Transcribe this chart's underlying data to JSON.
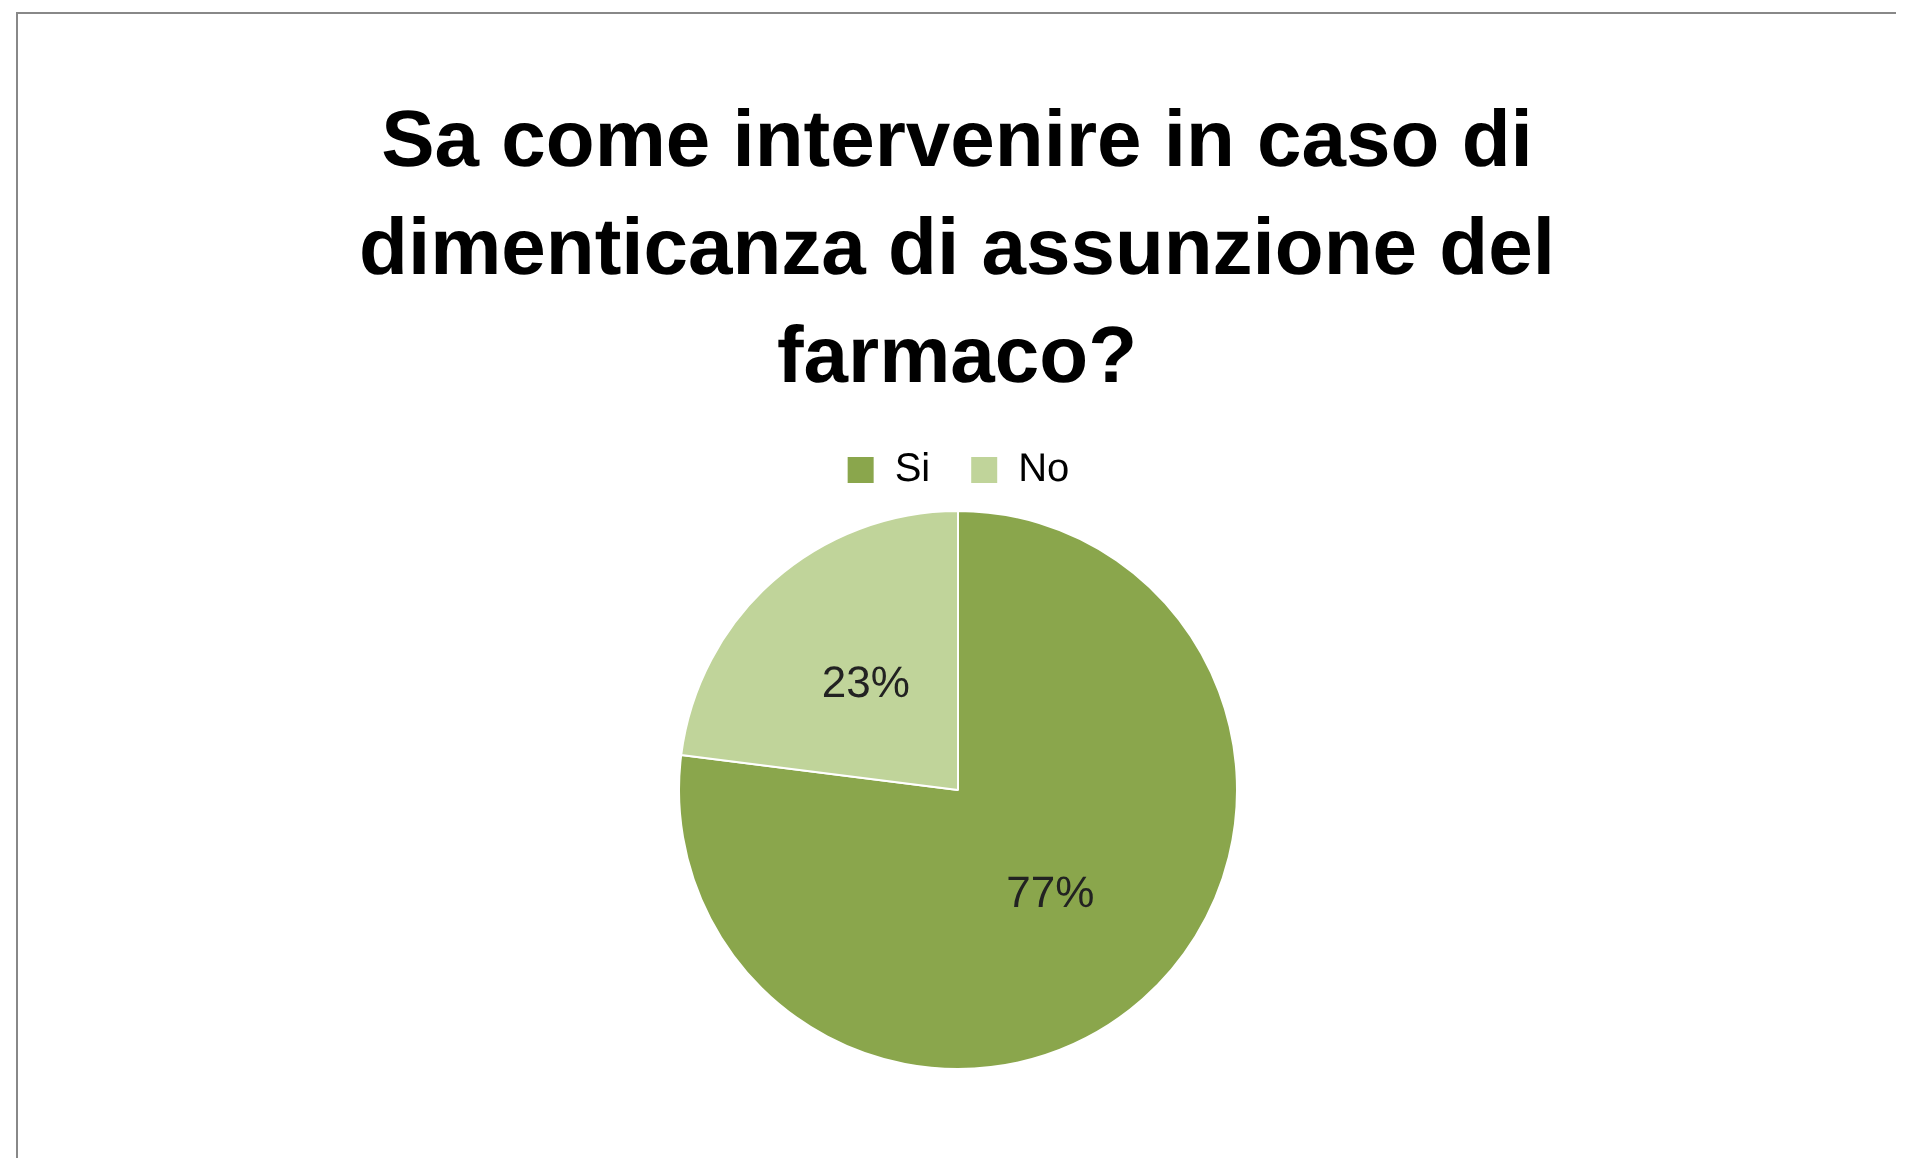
{
  "chart_data": {
    "type": "pie",
    "title": "Sa come intervenire in caso di dimenticanza di assunzione del farmaco?",
    "categories": [
      "Si",
      "No"
    ],
    "values": [
      77,
      23
    ],
    "colors": [
      "#8aa64c",
      "#c0d49a"
    ],
    "value_labels": [
      "77%",
      "23%"
    ],
    "legend": "top"
  }
}
